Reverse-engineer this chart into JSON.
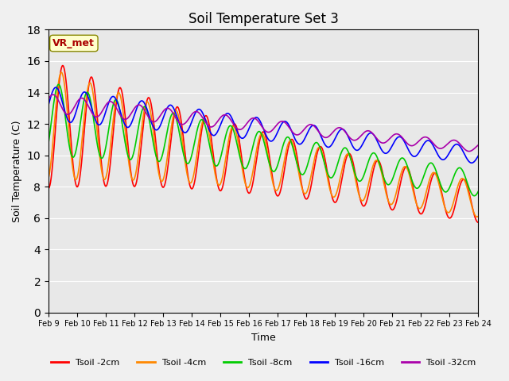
{
  "title": "Soil Temperature Set 3",
  "xlabel": "Time",
  "ylabel": "Soil Temperature (C)",
  "ylim": [
    0,
    18
  ],
  "yticks": [
    0,
    2,
    4,
    6,
    8,
    10,
    12,
    14,
    16,
    18
  ],
  "xtick_labels": [
    "Feb 9",
    "Feb 10",
    "Feb 11",
    "Feb 12",
    "Feb 13",
    "Feb 14",
    "Feb 15",
    "Feb 16",
    "Feb 17",
    "Feb 18",
    "Feb 19",
    "Feb 20",
    "Feb 21",
    "Feb 22",
    "Feb 23",
    "Feb 24"
  ],
  "series_colors": {
    "2cm": "#ff0000",
    "4cm": "#ff8800",
    "8cm": "#00cc00",
    "16cm": "#0000ff",
    "32cm": "#aa00aa"
  },
  "series_labels": {
    "2cm": "Tsoil -2cm",
    "4cm": "Tsoil -4cm",
    "8cm": "Tsoil -8cm",
    "16cm": "Tsoil -16cm",
    "32cm": "Tsoil -32cm"
  },
  "background_plot": "#e8e8e8",
  "background_fig": "#f0f0f0",
  "annotation_text": "VR_met",
  "annotation_color": "#aa0000",
  "annotation_bg": "#ffffcc",
  "linewidth": 1.2
}
